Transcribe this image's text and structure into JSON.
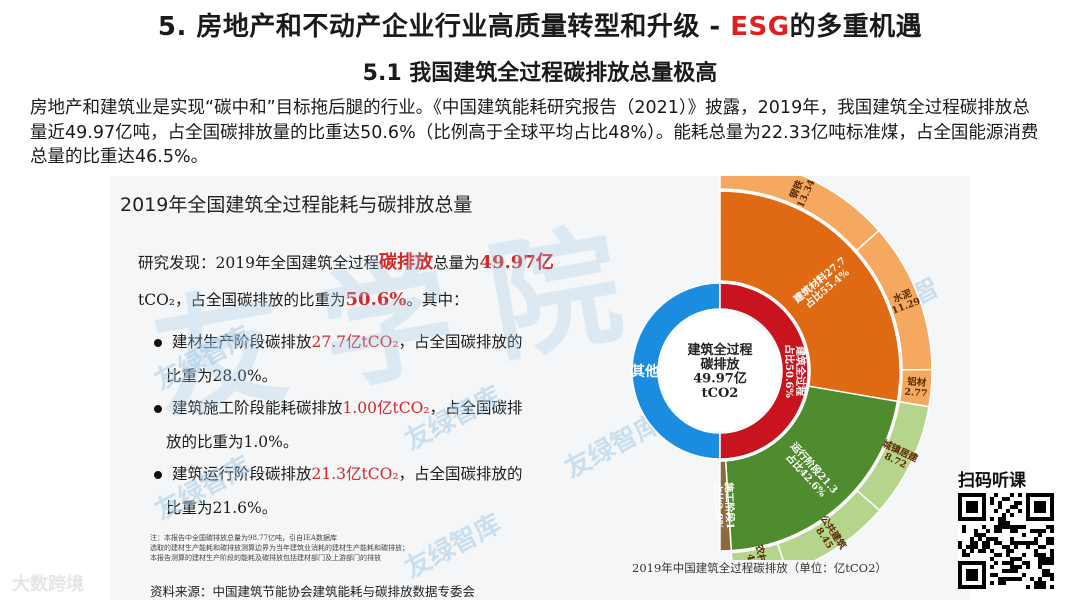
{
  "header": {
    "title_prefix": "5. 房地产和不动产企业行业高质量转型和升级 - ",
    "title_accent": "ESG",
    "title_suffix": "的多重机遇",
    "subtitle": "5.1  我国建筑全过程碳排放总量极高"
  },
  "paragraph": "房地产和建筑业是实现“碳中和”目标拖后腿的行业。《中国建筑能耗研究报告（2021）》披露，2019年，我国建筑全过程碳排放总量近49.97亿吨，占全国碳排放量的比重达50.6%（比例高于全球平均占比48%）。能耗总量为22.33亿吨标准煤，占全国能源消费总量的比重达46.5%。",
  "figure": {
    "title": "2019年全国建筑全过程能耗与碳排放总量",
    "finding_l1_a": "研究发现：2019年全国建筑全过程",
    "finding_l1_b": "碳排放",
    "finding_l1_c": "总量为",
    "finding_l1_d": "49.97亿",
    "finding_l2_a": "tCO₂",
    "finding_l2_b": "，占全国碳排放的比重为",
    "finding_l2_c": "50.6%",
    "finding_l2_d": "。其中：",
    "b1_a": "建材生产阶段碳排放",
    "b1_b": "27.7亿tCO₂",
    "b1_c": "，占全国碳排放的",
    "b1_d": "比重为28.0%。",
    "b2_a": "建筑施工阶段能耗碳排放",
    "b2_b": "1.00亿tCO₂",
    "b2_c": "，占全国碳排",
    "b2_d": "放的比重为1.0%。",
    "b3_a": "建筑运行阶段碳排放",
    "b3_b": "21.3亿tCO₂",
    "b3_c": "，占全国碳排放的",
    "b3_d": "比重为21.6%。",
    "note_1": "注：本报告中全国碳排放总量为98.77亿吨，引自IEA数据库",
    "note_2": "选取的建材生产能耗和碳排放测算边界为当年建筑业消耗的建材生产能耗和碳排放；",
    "note_3": "本报告测算的建材生产阶段的能耗及碳排放包括建材部门及上游部门的排放",
    "chart_caption": "2019年中国建筑全过程碳排放（单位：亿tCO2）",
    "watermarks": [
      "友绿智库",
      "友绿智库",
      "友绿智库",
      "友绿智库",
      "友绿智库",
      "友绿智库"
    ],
    "big_watermark": "友学院"
  },
  "chart_data": {
    "type": "sunburst",
    "unit": "亿tCO2",
    "total_label": [
      "建筑全过程",
      "碳排放",
      "49.97亿",
      "tCO2"
    ],
    "center_ring": [
      {
        "name": "其他",
        "value_pct": 49.4,
        "color": "#1a8de0"
      },
      {
        "name": "建筑全过程 占比50.6%",
        "value_pct": 50.6,
        "color": "#c8141e"
      }
    ],
    "stage_ring": [
      {
        "name": "建筑材料27.7 占比55.4%",
        "value": 27.7,
        "color": "#e06a14"
      },
      {
        "name": "运行阶段21.3 占比42.6%",
        "value": 21.3,
        "color": "#4e8c2e"
      },
      {
        "name": "施工阶段1 占比2.0%",
        "value": 1.0,
        "color": "#8c6a3c"
      }
    ],
    "outer_ring": [
      {
        "name": "钢铁",
        "value": 13.34,
        "color": "#f4a860"
      },
      {
        "name": "水泥",
        "value": 11.29,
        "color": "#f4a860"
      },
      {
        "name": "铝材",
        "value": 2.77,
        "color": "#f4a860"
      },
      {
        "name": "城镇居建",
        "value": 8.72,
        "color": "#b5d48c"
      },
      {
        "name": "公共建筑",
        "value": 8.45,
        "color": "#b5d48c"
      },
      {
        "name": "农村居建",
        "value": 4.12,
        "color": "#b5d48c"
      }
    ]
  },
  "footer": {
    "source": "资料来源：中国建筑节能协会建筑能耗与碳排放数据专委会",
    "brand": "大数跨境",
    "qr_label": "扫码听课"
  }
}
